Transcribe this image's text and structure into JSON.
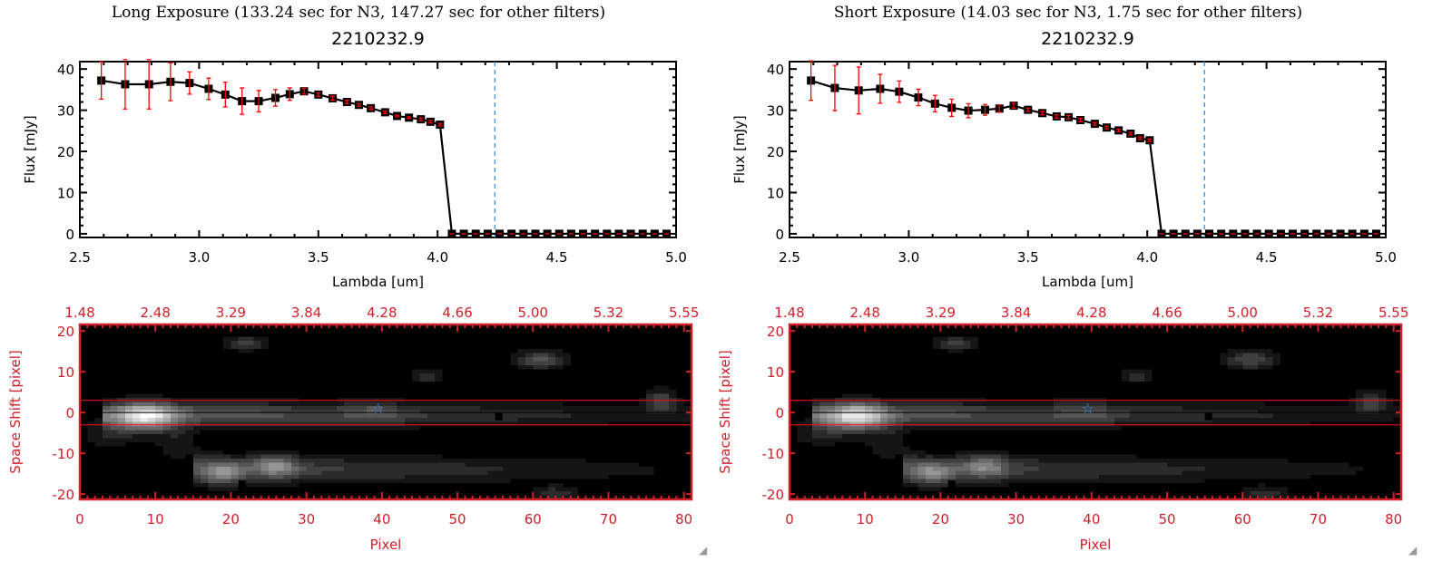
{
  "chart_data": [
    {
      "type": "line",
      "title": "Long Exposure (133.24 sec for N3, 147.27 sec for other filters)",
      "subtitle": "2210232.9",
      "xlabel": "Lambda [um]",
      "ylabel": "Flux [mJy]",
      "xlim": [
        2.5,
        5.0
      ],
      "ylim": [
        -0.9,
        41.8
      ],
      "xticks": [
        "2.5",
        "3.0",
        "3.5",
        "4.0",
        "4.5",
        "5.0"
      ],
      "yticks": [
        "0",
        "10",
        "20",
        "30",
        "40"
      ],
      "vline": 4.24,
      "x": [
        2.59,
        2.69,
        2.79,
        2.88,
        2.96,
        3.04,
        3.11,
        3.18,
        3.25,
        3.32,
        3.38,
        3.44,
        3.5,
        3.56,
        3.62,
        3.67,
        3.72,
        3.78,
        3.83,
        3.88,
        3.93,
        3.97,
        4.01
      ],
      "y": [
        37.2,
        36.3,
        36.3,
        36.9,
        36.6,
        35.2,
        33.8,
        32.2,
        32.2,
        33.0,
        33.9,
        34.6,
        33.8,
        32.9,
        32.0,
        31.3,
        30.5,
        29.5,
        28.6,
        28.2,
        27.8,
        27.2,
        26.5
      ],
      "err": [
        4.5,
        6,
        6,
        4.6,
        2.7,
        2.6,
        3,
        3.2,
        2.6,
        2,
        1.5,
        0.7,
        0.4,
        0.5,
        0.4,
        0.3,
        0.3,
        0.3,
        0.2,
        0.2,
        0.3,
        0.3,
        0.3
      ],
      "zero_x_start": 4.06,
      "zero_x_step": 0.05,
      "zero_count": 19,
      "image": {
        "type": "heatmap",
        "xlabel": "Pixel",
        "ylabel": "Space Shift [pixel]",
        "xlim": [
          0,
          81
        ],
        "ylim": [
          -21.3,
          21.6
        ],
        "xticks": [
          "0",
          "10",
          "20",
          "30",
          "40",
          "50",
          "60",
          "70",
          "80"
        ],
        "yticks": [
          "-20",
          "-10",
          "0",
          "10",
          "20"
        ],
        "top_ticks": [
          "1.48",
          "2.48",
          "3.29",
          "3.84",
          "4.28",
          "4.66",
          "5.00",
          "5.32",
          "5.55"
        ],
        "aperture": [
          -3,
          3
        ],
        "star": [
          39.5,
          1.2
        ],
        "dead_pixels": [
          [
            55,
            -1
          ],
          [
            21,
            -17.5
          ]
        ]
      }
    },
    {
      "type": "line",
      "title": "Short Exposure (14.03 sec for N3, 1.75 sec for other filters)",
      "subtitle": "2210232.9",
      "xlabel": "Lambda [um]",
      "ylabel": "Flux [mJy]",
      "xlim": [
        2.5,
        5.0
      ],
      "ylim": [
        -0.9,
        41.8
      ],
      "xticks": [
        "2.5",
        "3.0",
        "3.5",
        "4.0",
        "4.5",
        "5.0"
      ],
      "yticks": [
        "0",
        "10",
        "20",
        "30",
        "40"
      ],
      "vline": 4.24,
      "x": [
        2.59,
        2.69,
        2.79,
        2.88,
        2.96,
        3.04,
        3.11,
        3.18,
        3.25,
        3.32,
        3.38,
        3.44,
        3.5,
        3.56,
        3.62,
        3.67,
        3.72,
        3.78,
        3.83,
        3.88,
        3.93,
        3.97,
        4.01
      ],
      "y": [
        37.2,
        35.4,
        34.8,
        35.2,
        34.5,
        33.1,
        31.6,
        30.6,
        29.9,
        30.1,
        30.4,
        31.1,
        30.1,
        29.3,
        28.5,
        28.3,
        27.6,
        26.7,
        25.8,
        25.1,
        24.3,
        23.2,
        22.7
      ],
      "err": [
        4.8,
        5.5,
        5.7,
        3.5,
        2.6,
        2.0,
        2.0,
        2.1,
        1.7,
        1.3,
        0.9,
        0.6,
        0.4,
        0.4,
        0.4,
        0.4,
        0.4,
        0.3,
        0.3,
        0.3,
        0.3,
        0.3,
        0.3
      ],
      "zero_x_start": 4.06,
      "zero_x_step": 0.05,
      "zero_count": 19,
      "image": {
        "type": "heatmap",
        "xlabel": "Pixel",
        "ylabel": "Space Shift [pixel]",
        "xlim": [
          0,
          81
        ],
        "ylim": [
          -21.3,
          21.6
        ],
        "xticks": [
          "0",
          "10",
          "20",
          "30",
          "40",
          "50",
          "60",
          "70",
          "80"
        ],
        "yticks": [
          "-20",
          "-10",
          "0",
          "10",
          "20"
        ],
        "top_ticks": [
          "1.48",
          "2.48",
          "3.29",
          "3.84",
          "4.28",
          "4.66",
          "5.00",
          "5.32",
          "5.55"
        ],
        "aperture": [
          -3,
          3
        ],
        "star": [
          39.5,
          1.2
        ],
        "dead_pixels": [
          [
            55,
            -1
          ],
          [
            21,
            -17.5
          ]
        ]
      }
    }
  ],
  "colors": {
    "axis": "#000000",
    "err": "#ff0000",
    "frame": "#d0202a",
    "vline": "#3a8ee6",
    "star": "#3a8ee6"
  }
}
